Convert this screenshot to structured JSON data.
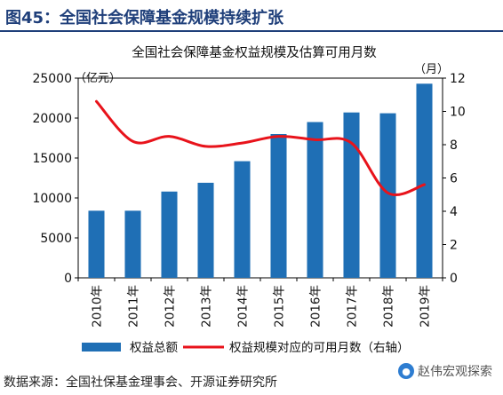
{
  "figure": {
    "label": "图45：全国社会保障基金规模持续扩张"
  },
  "source": "数据来源：全国社保基金理事会、开源证券研究所",
  "watermark": "赵伟宏观探索",
  "colors": {
    "bar": "#1f6fb5",
    "line": "#e8131b",
    "title": "#1f3f7a"
  },
  "chart_data": {
    "type": "bar",
    "title": "全国社会保障基金权益规模及估算可用月数",
    "categories": [
      "2010年",
      "2011年",
      "2012年",
      "2013年",
      "2014年",
      "2015年",
      "2016年",
      "2017年",
      "2018年",
      "2019年"
    ],
    "left_unit": "（亿元）",
    "right_unit": "（月）",
    "ylim_left": [
      0,
      25000
    ],
    "yticks_left": [
      "0",
      "5000",
      "10000",
      "15000",
      "20000",
      "25000"
    ],
    "ylim_right": [
      0,
      12
    ],
    "yticks_right": [
      "0",
      "2",
      "4",
      "6",
      "8",
      "10",
      "12"
    ],
    "series": [
      {
        "name": "权益总额",
        "type": "bar",
        "axis": "left",
        "values": [
          8400,
          8400,
          10800,
          11900,
          14600,
          18000,
          19500,
          20700,
          20600,
          24300
        ]
      },
      {
        "name": "权益规模对应的可用月数（右轴）",
        "type": "line",
        "axis": "right",
        "values": [
          10.6,
          8.2,
          8.5,
          7.9,
          8.1,
          8.5,
          8.3,
          8.1,
          5.1,
          5.6
        ]
      }
    ],
    "legend_position": "bottom",
    "grid": false
  }
}
